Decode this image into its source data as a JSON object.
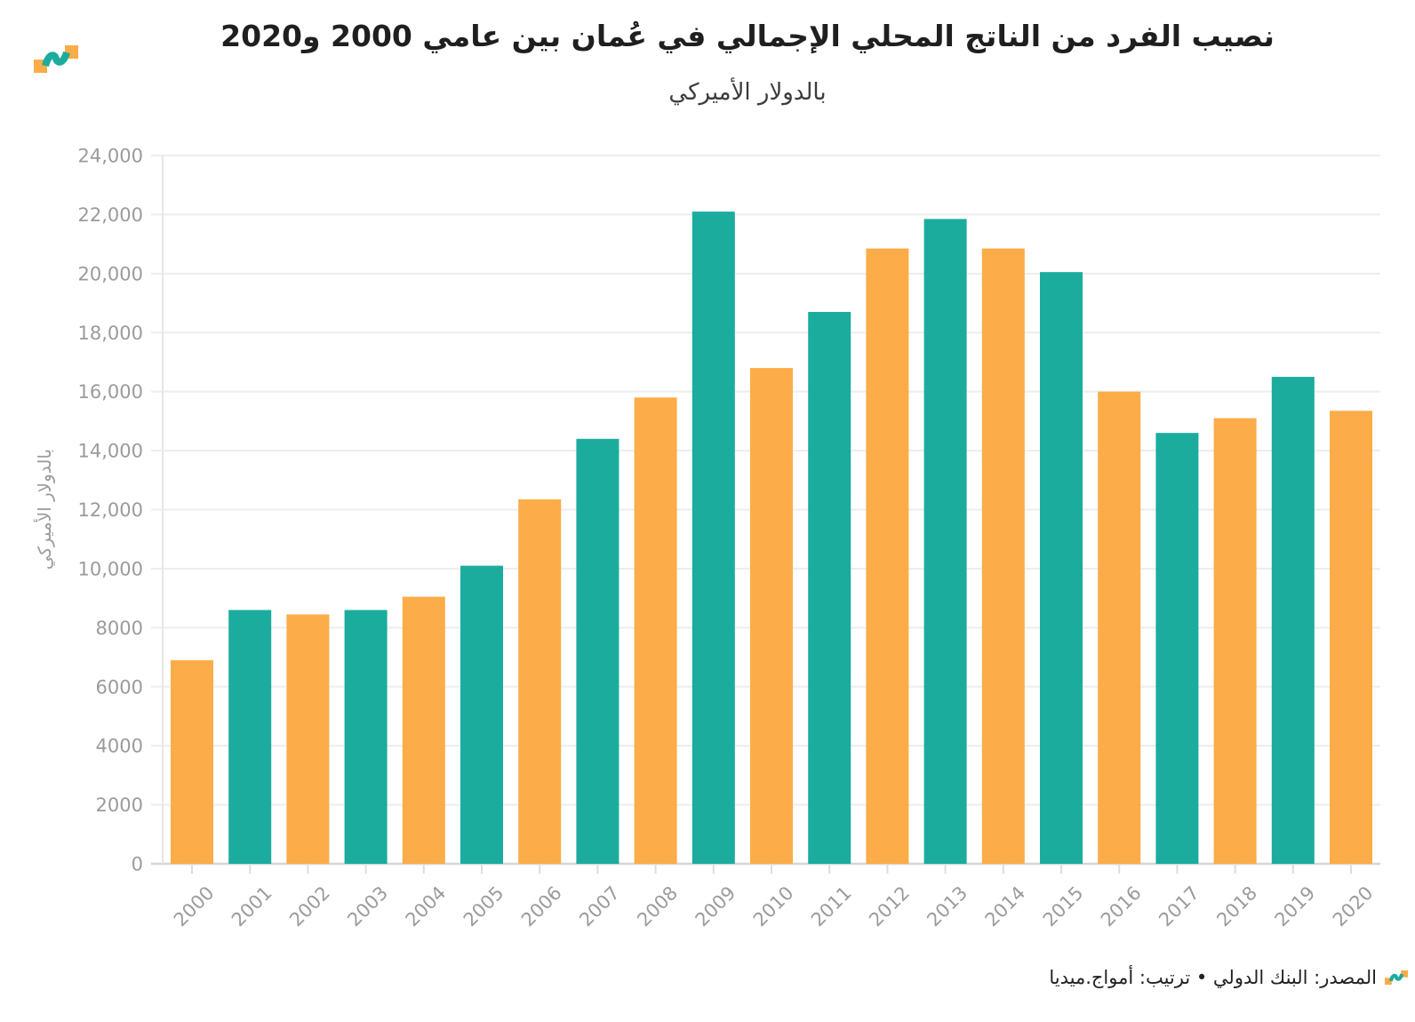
{
  "header": {
    "title": "نصيب الفرد من الناتج المحلي الإجمالي في عُمان بين عامي 2000 و2020",
    "subtitle": "بالدولار الأميركي"
  },
  "footer": {
    "source_text": "المصدر: البنك الدولي • ترتيب: أمواج.ميديا"
  },
  "icons": {
    "brand_logo": "amwaj-media-wave-logo",
    "footer_logo": "amwaj-media-wave-logo-small"
  },
  "colors": {
    "bar_orange": "#FCAC48",
    "bar_teal": "#1BAC9E",
    "gridline": "#EDEDED",
    "baseline": "#D6D6D6",
    "axis_line": "#E6E6E6",
    "tick": "#DDDDDD",
    "axis_text": "#9B9B9B",
    "title_text": "#1F1F1F",
    "subtitle_text": "#3C3C3C",
    "footer_text": "#222222"
  },
  "chart_data": {
    "type": "bar",
    "title": "نصيب الفرد من الناتج المحلي الإجمالي في عُمان بين عامي 2000 و2020",
    "subtitle": "بالدولار الأميركي",
    "xlabel": "",
    "ylabel": "بالدولار الأميركي",
    "categories": [
      "2000",
      "2001",
      "2002",
      "2003",
      "2004",
      "2005",
      "2006",
      "2007",
      "2008",
      "2009",
      "2010",
      "2011",
      "2012",
      "2013",
      "2014",
      "2015",
      "2016",
      "2017",
      "2018",
      "2019",
      "2020"
    ],
    "values": [
      6900,
      8600,
      8450,
      8600,
      9050,
      10100,
      12350,
      14400,
      15800,
      22100,
      16800,
      18700,
      20850,
      21850,
      20850,
      20050,
      16000,
      14600,
      15100,
      16500,
      15350
    ],
    "bar_color_pattern": "alternating orange/teal starting orange at 2000",
    "ylim": [
      0,
      24000
    ],
    "ytick_step": 2000,
    "ytick_labels": [
      "0",
      "2000",
      "4000",
      "6000",
      "8000",
      "10,000",
      "12,000",
      "14,000",
      "16,000",
      "18,000",
      "20,000",
      "22,000",
      "24,000"
    ],
    "grid": "horizontal only",
    "legend": "none"
  }
}
